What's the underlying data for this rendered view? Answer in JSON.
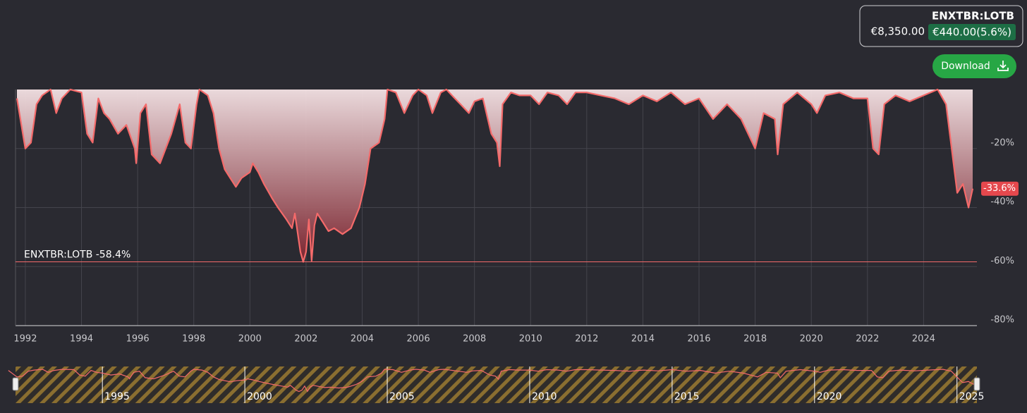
{
  "header": {
    "symbol": "ENXTBR:LOTB",
    "price": "€8,350.00",
    "change": "€440.00(5.6%)",
    "button": "Download"
  },
  "chart_data": {
    "type": "area",
    "x": [
      1991.7,
      1992.0,
      1992.2,
      1992.4,
      1992.6,
      1992.9,
      1993.1,
      1993.3,
      1993.6,
      1994.0,
      1994.2,
      1994.4,
      1994.6,
      1994.8,
      1995.0,
      1995.3,
      1995.6,
      1995.9,
      1995.95,
      1996.1,
      1996.3,
      1996.5,
      1996.8,
      1997.0,
      1997.2,
      1997.5,
      1997.7,
      1997.9,
      1998.1,
      1998.2,
      1998.5,
      1998.7,
      1998.9,
      1999.1,
      1999.3,
      1999.5,
      1999.7,
      2000.0,
      2000.1,
      2000.3,
      2000.5,
      2000.8,
      2001.0,
      2001.3,
      2001.5,
      2001.6,
      2001.8,
      2001.9,
      2002.0,
      2002.1,
      2002.2,
      2002.3,
      2002.4,
      2002.6,
      2002.8,
      2003.0,
      2003.3,
      2003.6,
      2003.9,
      2004.1,
      2004.3,
      2004.6,
      2004.8,
      2004.9,
      2005.2,
      2005.5,
      2005.8,
      2006.0,
      2006.3,
      2006.5,
      2006.8,
      2007.0,
      2007.3,
      2007.5,
      2007.8,
      2008.0,
      2008.3,
      2008.6,
      2008.8,
      2008.9,
      2009.0,
      2009.3,
      2009.6,
      2010.0,
      2010.3,
      2010.6,
      2011.0,
      2011.3,
      2011.6,
      2012.0,
      2012.5,
      2013.0,
      2013.5,
      2014.0,
      2014.5,
      2015.0,
      2015.5,
      2016.0,
      2016.5,
      2017.0,
      2017.5,
      2017.9,
      2018.0,
      2018.3,
      2018.7,
      2018.8,
      2019.0,
      2019.5,
      2020.0,
      2020.2,
      2020.5,
      2021.0,
      2021.5,
      2022.0,
      2022.2,
      2022.4,
      2022.6,
      2023.0,
      2023.5,
      2024.0,
      2024.5,
      2024.8,
      2025.0,
      2025.2,
      2025.4,
      2025.6,
      2025.75
    ],
    "values": [
      -3,
      -20,
      -18,
      -5,
      -2,
      0,
      -8,
      -3,
      0,
      -1,
      -15,
      -18,
      -3,
      -8,
      -10,
      -15,
      -12,
      -20,
      -25,
      -8,
      -5,
      -22,
      -25,
      -20,
      -15,
      -5,
      -18,
      -20,
      -5,
      0,
      -2,
      -8,
      -20,
      -27,
      -30,
      -33,
      -30,
      -28,
      -25,
      -28,
      -32,
      -37,
      -40,
      -44,
      -47,
      -42,
      -55,
      -58.4,
      -55,
      -44,
      -58,
      -46,
      -42,
      -45,
      -48,
      -47,
      -49,
      -47,
      -40,
      -32,
      -20,
      -18,
      -10,
      0,
      -1,
      -8,
      -2,
      0,
      -2,
      -8,
      -1,
      0,
      -3,
      -5,
      -8,
      -4,
      -3,
      -15,
      -18,
      -26,
      -5,
      -1,
      -2,
      -2,
      -5,
      -1,
      -2,
      -5,
      -1,
      -1,
      -2,
      -3,
      -5,
      -2,
      -4,
      -1,
      -5,
      -3,
      -10,
      -5,
      -10,
      -18,
      -20,
      -8,
      -10,
      -22,
      -5,
      -1,
      -5,
      -8,
      -2,
      -1,
      -3,
      -3,
      -20,
      -22,
      -5,
      -2,
      -4,
      -2,
      0,
      -5,
      -20,
      -35,
      -32,
      -40,
      -33.6
    ],
    "color": "#f46a6a",
    "xlim": [
      1991.65,
      2025.9
    ],
    "xticks": [
      1992,
      1994,
      1996,
      1998,
      2000,
      2002,
      2004,
      2006,
      2008,
      2010,
      2012,
      2014,
      2016,
      2018,
      2020,
      2022,
      2024
    ],
    "ylim": [
      -80,
      0
    ],
    "yticks": [
      {
        "value": -20,
        "label": "-20%"
      },
      {
        "value": -40,
        "label": "-40%"
      },
      {
        "value": -60,
        "label": "-60%"
      },
      {
        "value": -80,
        "label": "-80%"
      }
    ],
    "grid": true,
    "min_line": -58.4,
    "min_label": "ENXTBR:LOTB -58.4%",
    "last_label": "-33.6%",
    "navigator": {
      "xlim": [
        1991.95,
        2025.7
      ],
      "ticks": [
        1995,
        2000,
        2005,
        2010,
        2015,
        2020,
        2025
      ]
    }
  }
}
